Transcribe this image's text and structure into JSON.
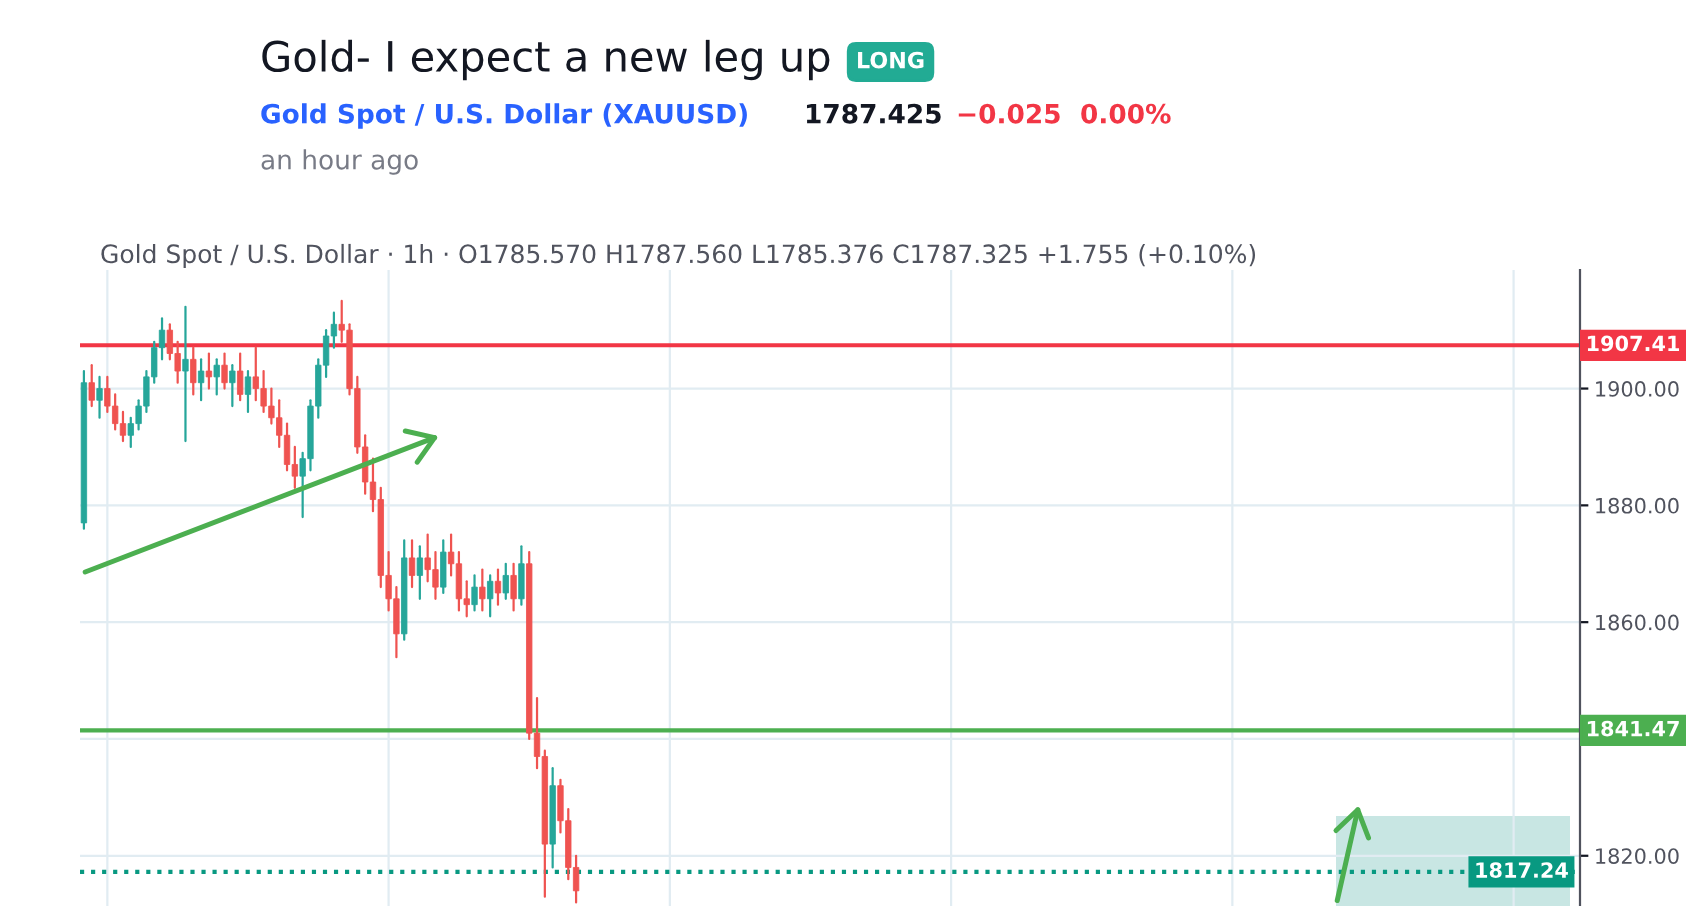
{
  "chart_data": {
    "type": "candlestick",
    "title": "Gold- I expect a new leg up",
    "subtitle": "Gold Spot / U.S. Dollar (XAUUSD)",
    "annotations": [
      "LONG",
      "1787.425",
      "−0.025  0.00%",
      "an hour ago",
      "Gold Spot / U.S. Dollar · 1h · O1785.570 H1787.560 L1785.376 C1787.325 +1.755 (+0.10%)"
    ],
    "categories": [
      null,
      null,
      null,
      null,
      null,
      null,
      null,
      null,
      null,
      null,
      null,
      null,
      null,
      null,
      null,
      null,
      null,
      null,
      null,
      null,
      null,
      null,
      null,
      null,
      null,
      null,
      null,
      null,
      null,
      null,
      null,
      null,
      null,
      null,
      null,
      null,
      null,
      null,
      null,
      null,
      null,
      null,
      null,
      null,
      null,
      null,
      null,
      null,
      null,
      null,
      null,
      null,
      null,
      null,
      null,
      null,
      null,
      null,
      null,
      null,
      null,
      null,
      null,
      null,
      null,
      null,
      null,
      null,
      null,
      null,
      null,
      null,
      null,
      null,
      null,
      null,
      null,
      null,
      null,
      null,
      null,
      null,
      null,
      null,
      null,
      null,
      null,
      null,
      null,
      null,
      null,
      null,
      null,
      null,
      null,
      null,
      null,
      null,
      null,
      null,
      null,
      null,
      null,
      null,
      null,
      null,
      null,
      null,
      null,
      null,
      null,
      null,
      null,
      null,
      null,
      null,
      null,
      null,
      null,
      null,
      null,
      null,
      null,
      null,
      null,
      null,
      null,
      null,
      null,
      null,
      null,
      null,
      null,
      null,
      null,
      null,
      null,
      null,
      null,
      null,
      null,
      null,
      null,
      null,
      null,
      null,
      null,
      null,
      null,
      null,
      null,
      null,
      null,
      null,
      null,
      null,
      null,
      null,
      null,
      null,
      null,
      null,
      null,
      null,
      null,
      null,
      null,
      null,
      null,
      null,
      null,
      null,
      null,
      null,
      null,
      null,
      null,
      null,
      null,
      null,
      null,
      null,
      null,
      null,
      null,
      null,
      null,
      null,
      null,
      null,
      null,
      null
    ],
    "ohlc": [
      [
        1877,
        1903,
        1876,
        1901
      ],
      [
        1901,
        1904,
        1897,
        1898
      ],
      [
        1898,
        1902,
        1895,
        1900
      ],
      [
        1900,
        1902,
        1896,
        1897
      ],
      [
        1897,
        1899,
        1893,
        1894
      ],
      [
        1894,
        1896,
        1891,
        1892
      ],
      [
        1892,
        1895,
        1890,
        1894
      ],
      [
        1894,
        1898,
        1893,
        1897
      ],
      [
        1897,
        1903,
        1896,
        1902
      ],
      [
        1902,
        1908,
        1901,
        1907
      ],
      [
        1907,
        1912,
        1905,
        1910
      ],
      [
        1910,
        1911,
        1905,
        1906
      ],
      [
        1906,
        1908,
        1901,
        1903
      ],
      [
        1903,
        1914,
        1891,
        1905
      ],
      [
        1905,
        1907,
        1899,
        1901
      ],
      [
        1901,
        1905,
        1898,
        1903
      ],
      [
        1903,
        1906,
        1900,
        1902
      ],
      [
        1902,
        1905,
        1899,
        1904
      ],
      [
        1904,
        1906,
        1900,
        1901
      ],
      [
        1901,
        1904,
        1897,
        1903
      ],
      [
        1903,
        1906,
        1898,
        1899
      ],
      [
        1899,
        1903,
        1896,
        1902
      ],
      [
        1902,
        1907,
        1898,
        1900
      ],
      [
        1900,
        1903,
        1896,
        1897
      ],
      [
        1897,
        1900,
        1894,
        1895
      ],
      [
        1895,
        1898,
        1890,
        1892
      ],
      [
        1892,
        1894,
        1886,
        1887
      ],
      [
        1887,
        1890,
        1883,
        1885
      ],
      [
        1885,
        1889,
        1878,
        1888
      ],
      [
        1888,
        1898,
        1886,
        1897
      ],
      [
        1897,
        1905,
        1895,
        1904
      ],
      [
        1904,
        1910,
        1902,
        1909
      ],
      [
        1909,
        1913,
        1907,
        1911
      ],
      [
        1911,
        1915,
        1908,
        1910
      ],
      [
        1910,
        1911,
        1899,
        1900
      ],
      [
        1900,
        1902,
        1889,
        1890
      ],
      [
        1890,
        1892,
        1882,
        1884
      ],
      [
        1884,
        1888,
        1879,
        1881
      ],
      [
        1881,
        1883,
        1866,
        1868
      ],
      [
        1868,
        1872,
        1862,
        1864
      ],
      [
        1864,
        1866,
        1854,
        1858
      ],
      [
        1858,
        1874,
        1857,
        1871
      ],
      [
        1871,
        1874,
        1866,
        1868
      ],
      [
        1868,
        1873,
        1864,
        1871
      ],
      [
        1871,
        1875,
        1867,
        1869
      ],
      [
        1869,
        1872,
        1864,
        1866
      ],
      [
        1866,
        1874,
        1865,
        1872
      ],
      [
        1872,
        1875,
        1868,
        1870
      ],
      [
        1870,
        1872,
        1862,
        1864
      ],
      [
        1864,
        1867,
        1861,
        1863
      ],
      [
        1863,
        1868,
        1862,
        1866
      ],
      [
        1866,
        1869,
        1862,
        1864
      ],
      [
        1864,
        1868,
        1861,
        1867
      ],
      [
        1867,
        1869,
        1863,
        1865
      ],
      [
        1865,
        1870,
        1864,
        1868
      ],
      [
        1868,
        1870,
        1862,
        1864
      ],
      [
        1864,
        1873,
        1863,
        1870
      ],
      [
        1870,
        1872,
        1840,
        1841
      ],
      [
        1841,
        1847,
        1835,
        1837
      ],
      [
        1837,
        1838,
        1813,
        1822
      ],
      [
        1822,
        1835,
        1818,
        1832
      ],
      [
        1832,
        1833,
        1824,
        1826
      ],
      [
        1826,
        1828,
        1816,
        1818
      ],
      [
        1818,
        1820,
        1812,
        1814
      ],
      null,
      null,
      null,
      null,
      null,
      null,
      null,
      null,
      null,
      null,
      null,
      null,
      null,
      null,
      null,
      null,
      null,
      null,
      null,
      null,
      null,
      null,
      null,
      null,
      null,
      null,
      null,
      null,
      null,
      null,
      null,
      null,
      null,
      null,
      null,
      null,
      null,
      null,
      null,
      null,
      null,
      null,
      null,
      null,
      null,
      null,
      null,
      null,
      null,
      null,
      null,
      null,
      null,
      null,
      null,
      null,
      null,
      null,
      null,
      null,
      null,
      null,
      null,
      null,
      null,
      null,
      null,
      null,
      null,
      null,
      null,
      null,
      null,
      null,
      null,
      null,
      null,
      null,
      null,
      null,
      null,
      null,
      null,
      null,
      null,
      null,
      null,
      null,
      null,
      null,
      null,
      null,
      null,
      null,
      null,
      null,
      null,
      null,
      null,
      null,
      null,
      null,
      null,
      null,
      null,
      null,
      null,
      null,
      null,
      null,
      null,
      null,
      null,
      null,
      null,
      null,
      null,
      null,
      null,
      null,
      null,
      null,
      null,
      null,
      null,
      null,
      null,
      null
    ],
    "ylim": [
      1811.4,
      1920.3
    ],
    "yticks": [
      {
        "value": 1820,
        "label": "1820.00"
      },
      {
        "value": 1840,
        "label": null
      },
      {
        "value": 1860,
        "label": "1860.00"
      },
      {
        "value": 1880,
        "label": "1880.00"
      },
      {
        "value": 1900,
        "label": "1900.00"
      }
    ],
    "ref_lines": [
      {
        "axis": "y",
        "value": 1907.41,
        "label": "1907.41",
        "color": "#f23645"
      },
      {
        "axis": "y",
        "value": 1841.47,
        "label": "1841.47",
        "color": "#4caf50"
      },
      {
        "axis": "y",
        "value": 1817.24,
        "label": "1817.24",
        "color": "#089981",
        "line_style": "dotted"
      }
    ],
    "grid": true,
    "tick_labels": "y"
  }
}
